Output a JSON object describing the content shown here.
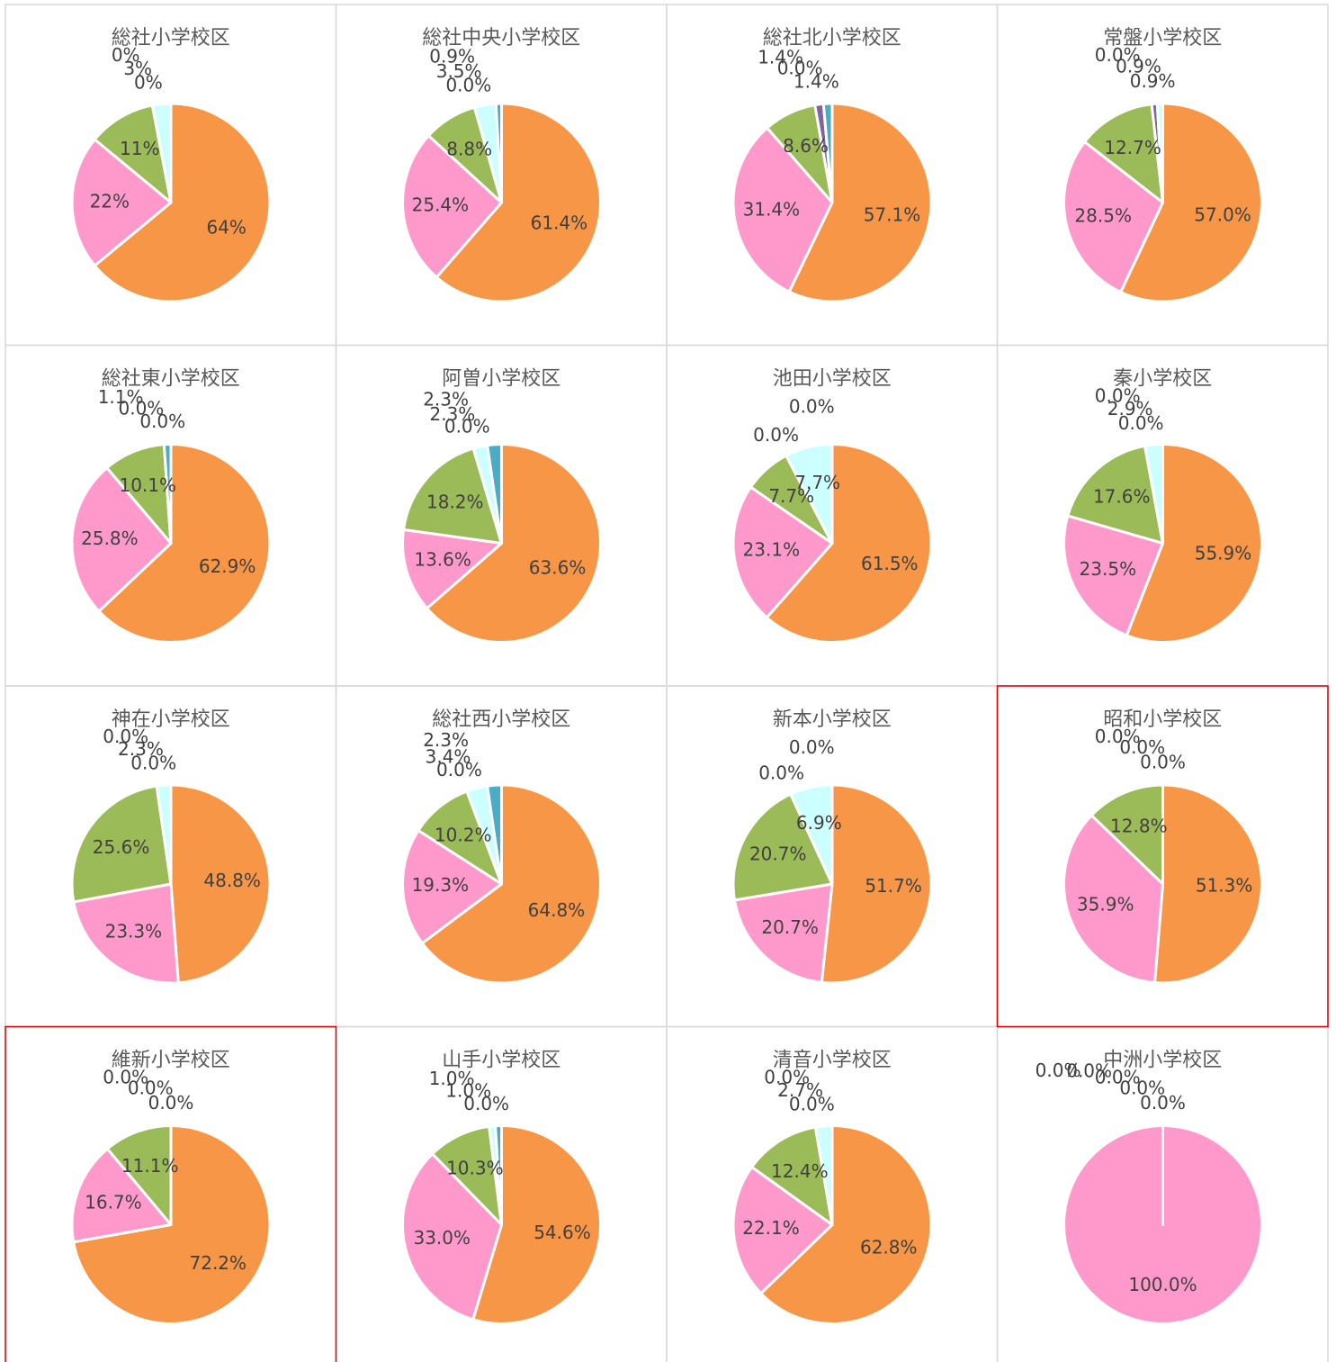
{
  "chart_data": [
    {
      "type": "pie",
      "title": "総社小学校区",
      "values": [
        64,
        22,
        11,
        0,
        3,
        0
      ],
      "value_labels": [
        "64%",
        "22%",
        "11%",
        "0%",
        "3%",
        "0%"
      ],
      "colors": [
        "#f79646",
        "#ff99cc",
        "#9bbb59",
        "#8064a2",
        "#ccffff",
        "#4bacc6"
      ]
    },
    {
      "type": "pie",
      "title": "総社中央小学校区",
      "values": [
        61.4,
        25.4,
        8.8,
        0.0,
        3.5,
        0.9
      ],
      "value_labels": [
        "61.4%",
        "25.4%",
        "8.8%",
        "0.0%",
        "3.5%",
        "0.9%"
      ],
      "colors": [
        "#f79646",
        "#ff99cc",
        "#9bbb59",
        "#8064a2",
        "#ccffff",
        "#4bacc6"
      ]
    },
    {
      "type": "pie",
      "title": "総社北小学校区",
      "values": [
        57.1,
        31.4,
        8.6,
        1.4,
        0.0,
        1.4
      ],
      "value_labels": [
        "57.1%",
        "31.4%",
        "8.6%",
        "1.4%",
        "0.0%",
        "1.4%"
      ],
      "colors": [
        "#f79646",
        "#ff99cc",
        "#9bbb59",
        "#8064a2",
        "#ccffff",
        "#4bacc6"
      ]
    },
    {
      "type": "pie",
      "title": "常盤小学校区",
      "values": [
        57.0,
        28.5,
        12.7,
        0.9,
        0.9,
        0.0
      ],
      "value_labels": [
        "57.0%",
        "28.5%",
        "12.7%",
        "0.9%",
        "0.9%",
        "0.0%"
      ],
      "colors": [
        "#f79646",
        "#ff99cc",
        "#9bbb59",
        "#8064a2",
        "#ccffff",
        "#4bacc6"
      ]
    },
    {
      "type": "pie",
      "title": "総社東小学校区",
      "values": [
        62.9,
        25.8,
        10.1,
        0.0,
        0.0,
        1.1
      ],
      "value_labels": [
        "62.9%",
        "25.8%",
        "10.1%",
        "0.0%",
        "0.0%",
        "1.1%"
      ],
      "colors": [
        "#f79646",
        "#ff99cc",
        "#9bbb59",
        "#8064a2",
        "#ccffff",
        "#4bacc6"
      ]
    },
    {
      "type": "pie",
      "title": "阿曽小学校区",
      "values": [
        63.6,
        13.6,
        18.2,
        0.0,
        2.3,
        2.3
      ],
      "value_labels": [
        "63.6%",
        "13.6%",
        "18.2%",
        "0.0%",
        "2.3%",
        "2.3%"
      ],
      "colors": [
        "#f79646",
        "#ff99cc",
        "#9bbb59",
        "#8064a2",
        "#ccffff",
        "#4bacc6"
      ]
    },
    {
      "type": "pie",
      "title": "池田小学校区",
      "values": [
        61.5,
        23.1,
        7.7,
        0.0,
        7.7,
        0.0
      ],
      "value_labels": [
        "61.5%",
        "23.1%",
        "7.7%",
        "0.0%",
        "7.7%",
        "0.0%"
      ],
      "colors": [
        "#f79646",
        "#ff99cc",
        "#9bbb59",
        "#8064a2",
        "#ccffff",
        "#4bacc6"
      ]
    },
    {
      "type": "pie",
      "title": "秦小学校区",
      "values": [
        55.9,
        23.5,
        17.6,
        0.0,
        2.9,
        0.0
      ],
      "value_labels": [
        "55.9%",
        "23.5%",
        "17.6%",
        "0.0%",
        "2.9%",
        "0.0%"
      ],
      "colors": [
        "#f79646",
        "#ff99cc",
        "#9bbb59",
        "#8064a2",
        "#ccffff",
        "#4bacc6"
      ]
    },
    {
      "type": "pie",
      "title": "神在小学校区",
      "values": [
        48.8,
        23.3,
        25.6,
        0.0,
        2.3,
        0.0
      ],
      "value_labels": [
        "48.8%",
        "23.3%",
        "25.6%",
        "0.0%",
        "2.3%",
        "0.0%"
      ],
      "colors": [
        "#f79646",
        "#ff99cc",
        "#9bbb59",
        "#8064a2",
        "#ccffff",
        "#4bacc6"
      ]
    },
    {
      "type": "pie",
      "title": "総社西小学校区",
      "values": [
        64.8,
        19.3,
        10.2,
        0.0,
        3.4,
        2.3
      ],
      "value_labels": [
        "64.8%",
        "19.3%",
        "10.2%",
        "0.0%",
        "3.4%",
        "2.3%"
      ],
      "colors": [
        "#f79646",
        "#ff99cc",
        "#9bbb59",
        "#8064a2",
        "#ccffff",
        "#4bacc6"
      ]
    },
    {
      "type": "pie",
      "title": "新本小学校区",
      "values": [
        51.7,
        20.7,
        20.7,
        0.0,
        6.9,
        0.0
      ],
      "value_labels": [
        "51.7%",
        "20.7%",
        "20.7%",
        "0.0%",
        "6.9%",
        "0.0%"
      ],
      "colors": [
        "#f79646",
        "#ff99cc",
        "#9bbb59",
        "#8064a2",
        "#ccffff",
        "#4bacc6"
      ]
    },
    {
      "type": "pie",
      "title": "昭和小学校区",
      "values": [
        51.3,
        35.9,
        12.8,
        0.0,
        0.0,
        0.0
      ],
      "value_labels": [
        "51.3%",
        "35.9%",
        "12.8%",
        "0.0%",
        "0.0%",
        "0.0%"
      ],
      "colors": [
        "#f79646",
        "#ff99cc",
        "#9bbb59",
        "#8064a2",
        "#ccffff",
        "#4bacc6"
      ],
      "highlight": "#e00000"
    },
    {
      "type": "pie",
      "title": "維新小学校区",
      "values": [
        72.2,
        16.7,
        11.1,
        0.0,
        0.0,
        0.0
      ],
      "value_labels": [
        "72.2%",
        "16.7%",
        "11.1%",
        "0.0%",
        "0.0%",
        "0.0%"
      ],
      "colors": [
        "#f79646",
        "#ff99cc",
        "#9bbb59",
        "#8064a2",
        "#ccffff",
        "#4bacc6"
      ],
      "highlight": "#e00000"
    },
    {
      "type": "pie",
      "title": "山手小学校区",
      "values": [
        54.6,
        33.0,
        10.3,
        0.0,
        1.0,
        1.0
      ],
      "value_labels": [
        "54.6%",
        "33.0%",
        "10.3%",
        "0.0%",
        "1.0%",
        "1.0%"
      ],
      "colors": [
        "#f79646",
        "#ff99cc",
        "#9bbb59",
        "#8064a2",
        "#ccffff",
        "#4bacc6"
      ]
    },
    {
      "type": "pie",
      "title": "清音小学校区",
      "values": [
        62.8,
        22.1,
        12.4,
        0.0,
        2.7,
        0.0
      ],
      "value_labels": [
        "62.8%",
        "22.1%",
        "12.4%",
        "0.0%",
        "2.7%",
        "0.0%"
      ],
      "colors": [
        "#f79646",
        "#ff99cc",
        "#9bbb59",
        "#8064a2",
        "#ccffff",
        "#4bacc6"
      ]
    },
    {
      "type": "pie",
      "title": "中洲小学校区",
      "values": [
        0.0,
        100.0,
        0.0,
        0.0,
        0.0,
        0.0
      ],
      "value_labels": [
        "0.0%",
        "100.0%",
        "0.0%",
        "0.0%",
        "0.0%",
        "0.0%"
      ],
      "colors": [
        "#f79646",
        "#ff99cc",
        "#9bbb59",
        "#8064a2",
        "#ccffff",
        "#4bacc6"
      ]
    }
  ]
}
